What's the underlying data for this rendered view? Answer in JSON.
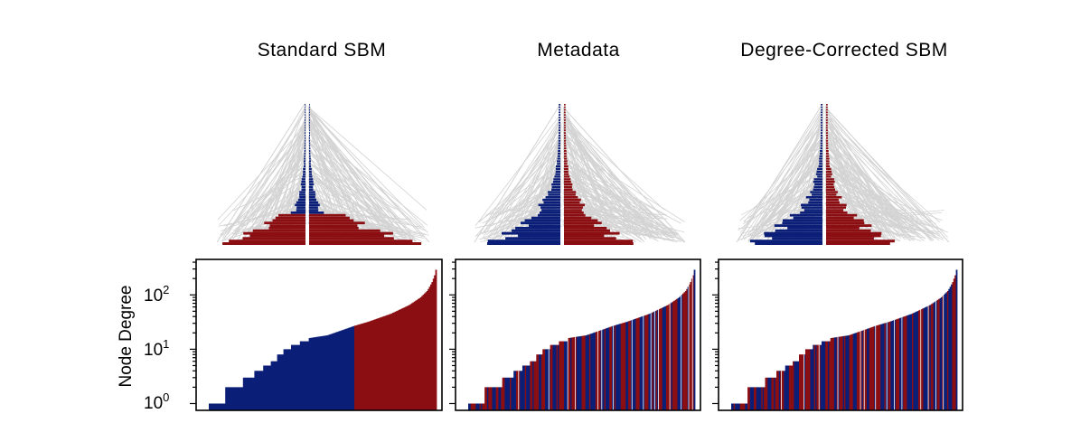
{
  "colors": {
    "group_a": "#0b1f78",
    "group_b": "#8b0e12",
    "edges": "#d3d3d3",
    "axis": "#000000"
  },
  "panel_titles": [
    "Standard SBM",
    "Metadata",
    "Degree-Corrected SBM"
  ],
  "ylabel": "Node Degree",
  "y_ticks": [
    {
      "base": "10",
      "exp": "0"
    },
    {
      "base": "10",
      "exp": "1"
    },
    {
      "base": "10",
      "exp": "2"
    }
  ],
  "chart_data": [
    {
      "type": "bar",
      "title": "Standard SBM",
      "xlabel": "",
      "ylabel": "Node Degree",
      "yscale": "log",
      "ylim": [
        0.75,
        450
      ],
      "description": "Nodes sorted by degree; split into two blocks by degree",
      "degree_profile_knots": [
        [
          0,
          1
        ],
        [
          0.07,
          1
        ],
        [
          0.07,
          2
        ],
        [
          0.15,
          2
        ],
        [
          0.15,
          3
        ],
        [
          0.2,
          3
        ],
        [
          0.2,
          4
        ],
        [
          0.24,
          4
        ],
        [
          0.24,
          5
        ],
        [
          0.27,
          5
        ],
        [
          0.27,
          6
        ],
        [
          0.3,
          6
        ],
        [
          0.3,
          8
        ],
        [
          0.33,
          8
        ],
        [
          0.33,
          10
        ],
        [
          0.36,
          10
        ],
        [
          0.36,
          12
        ],
        [
          0.4,
          12
        ],
        [
          0.4,
          14
        ],
        [
          0.44,
          14
        ],
        [
          0.44,
          16
        ],
        [
          0.48,
          17
        ],
        [
          0.52,
          18
        ],
        [
          0.58,
          22
        ],
        [
          0.64,
          27
        ],
        [
          0.7,
          32
        ],
        [
          0.8,
          45
        ],
        [
          0.88,
          65
        ],
        [
          0.93,
          90
        ],
        [
          0.96,
          120
        ],
        [
          0.98,
          170
        ],
        [
          0.995,
          250
        ],
        [
          1,
          350
        ]
      ],
      "series": [
        {
          "group": "A",
          "color": "#0b1f78",
          "rule": "degree below split",
          "degree_split": 27
        },
        {
          "group": "B",
          "color": "#8b0e12",
          "rule": "degree at or above split",
          "degree_split": 27
        }
      ]
    },
    {
      "type": "bar",
      "title": "Metadata",
      "xlabel": "",
      "ylabel": "Node Degree",
      "yscale": "log",
      "ylim": [
        0.75,
        450
      ],
      "description": "Nodes sorted by degree; groups interleaved (from metadata)",
      "degree_profile_knots": [
        [
          0,
          1
        ],
        [
          0.07,
          1
        ],
        [
          0.07,
          2
        ],
        [
          0.15,
          2
        ],
        [
          0.15,
          3
        ],
        [
          0.2,
          3
        ],
        [
          0.2,
          4
        ],
        [
          0.24,
          4
        ],
        [
          0.24,
          5
        ],
        [
          0.27,
          5
        ],
        [
          0.27,
          6
        ],
        [
          0.3,
          6
        ],
        [
          0.3,
          8
        ],
        [
          0.33,
          8
        ],
        [
          0.33,
          10
        ],
        [
          0.36,
          10
        ],
        [
          0.36,
          12
        ],
        [
          0.4,
          12
        ],
        [
          0.4,
          14
        ],
        [
          0.44,
          14
        ],
        [
          0.44,
          16
        ],
        [
          0.48,
          17
        ],
        [
          0.52,
          18
        ],
        [
          0.58,
          22
        ],
        [
          0.64,
          27
        ],
        [
          0.7,
          32
        ],
        [
          0.8,
          45
        ],
        [
          0.88,
          65
        ],
        [
          0.93,
          90
        ],
        [
          0.96,
          120
        ],
        [
          0.98,
          170
        ],
        [
          0.995,
          250
        ],
        [
          1,
          350
        ]
      ],
      "series": [
        {
          "group": "A",
          "color": "#0b1f78",
          "rule": "interleaved"
        },
        {
          "group": "B",
          "color": "#8b0e12",
          "rule": "interleaved"
        }
      ]
    },
    {
      "type": "bar",
      "title": "Degree-Corrected SBM",
      "xlabel": "",
      "ylabel": "Node Degree",
      "yscale": "log",
      "ylim": [
        0.75,
        450
      ],
      "description": "Nodes sorted by degree; groups interleaved (degree-corrected)",
      "degree_profile_knots": [
        [
          0,
          1
        ],
        [
          0.07,
          1
        ],
        [
          0.07,
          2
        ],
        [
          0.15,
          2
        ],
        [
          0.15,
          3
        ],
        [
          0.2,
          3
        ],
        [
          0.2,
          4
        ],
        [
          0.24,
          4
        ],
        [
          0.24,
          5
        ],
        [
          0.27,
          5
        ],
        [
          0.27,
          6
        ],
        [
          0.3,
          6
        ],
        [
          0.3,
          8
        ],
        [
          0.33,
          8
        ],
        [
          0.33,
          10
        ],
        [
          0.36,
          10
        ],
        [
          0.36,
          12
        ],
        [
          0.4,
          12
        ],
        [
          0.4,
          14
        ],
        [
          0.44,
          14
        ],
        [
          0.44,
          16
        ],
        [
          0.48,
          17
        ],
        [
          0.52,
          18
        ],
        [
          0.58,
          22
        ],
        [
          0.64,
          27
        ],
        [
          0.7,
          32
        ],
        [
          0.8,
          45
        ],
        [
          0.88,
          65
        ],
        [
          0.93,
          90
        ],
        [
          0.96,
          120
        ],
        [
          0.98,
          170
        ],
        [
          0.995,
          250
        ],
        [
          1,
          350
        ]
      ],
      "series": [
        {
          "group": "A",
          "color": "#0b1f78",
          "rule": "interleaved"
        },
        {
          "group": "B",
          "color": "#8b0e12",
          "rule": "interleaved"
        }
      ]
    }
  ]
}
